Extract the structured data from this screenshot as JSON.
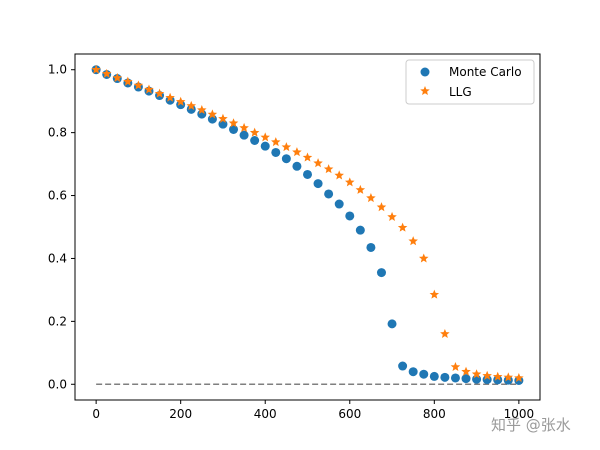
{
  "chart_data": {
    "type": "scatter",
    "title": "",
    "xlabel": "",
    "ylabel": "",
    "xlim": [
      -50,
      1050
    ],
    "ylim": [
      -0.05,
      1.05
    ],
    "xticks": [
      0,
      200,
      400,
      600,
      800,
      1000
    ],
    "yticks": [
      0.0,
      0.2,
      0.4,
      0.6,
      0.8,
      1.0
    ],
    "xtick_labels": [
      "0",
      "200",
      "400",
      "600",
      "800",
      "1000"
    ],
    "ytick_labels": [
      "0.0",
      "0.2",
      "0.4",
      "0.6",
      "0.8",
      "1.0"
    ],
    "legend_position": "top-right",
    "grid": false,
    "x": [
      0,
      25,
      50,
      75,
      100,
      125,
      150,
      175,
      200,
      225,
      250,
      275,
      300,
      325,
      350,
      375,
      400,
      425,
      450,
      475,
      500,
      525,
      550,
      575,
      600,
      625,
      650,
      675,
      700,
      725,
      750,
      775,
      800,
      825,
      850,
      875,
      900,
      925,
      950,
      975,
      1000
    ],
    "series": [
      {
        "name": "Monte Carlo",
        "marker": "circle",
        "color": "#1f77b4",
        "values": [
          1.0,
          0.985,
          0.972,
          0.958,
          0.945,
          0.932,
          0.918,
          0.903,
          0.889,
          0.874,
          0.859,
          0.843,
          0.827,
          0.81,
          0.792,
          0.775,
          0.757,
          0.737,
          0.717,
          0.693,
          0.667,
          0.638,
          0.605,
          0.573,
          0.535,
          0.49,
          0.435,
          0.355,
          0.192,
          0.058,
          0.04,
          0.032,
          0.025,
          0.022,
          0.02,
          0.018,
          0.016,
          0.015,
          0.014,
          0.013,
          0.012
        ]
      },
      {
        "name": "LLG",
        "marker": "star",
        "color": "#ff7f0e",
        "values": [
          1.0,
          0.987,
          0.974,
          0.962,
          0.95,
          0.937,
          0.924,
          0.911,
          0.898,
          0.885,
          0.872,
          0.858,
          0.844,
          0.83,
          0.815,
          0.8,
          0.785,
          0.77,
          0.754,
          0.738,
          0.721,
          0.703,
          0.684,
          0.664,
          0.642,
          0.618,
          0.592,
          0.563,
          0.532,
          0.498,
          0.455,
          0.4,
          0.285,
          0.16,
          0.055,
          0.04,
          0.032,
          0.027,
          0.024,
          0.022,
          0.02
        ]
      }
    ],
    "reference_line": {
      "y": 0.0,
      "from_x": 0,
      "to_x": 1000,
      "style": "dashed",
      "color": "#7f7f7f"
    }
  },
  "watermark": {
    "text": "知乎 @张水"
  }
}
